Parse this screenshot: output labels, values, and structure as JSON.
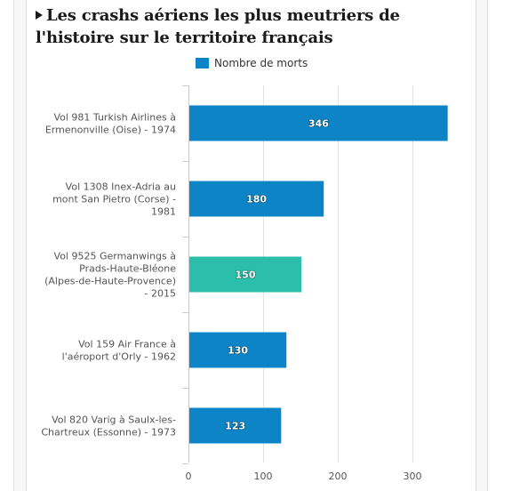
{
  "colors": {
    "bar": "#0d84c6",
    "highlight": "#2bbfab",
    "grid": "#e4e4e4",
    "axis": "#cccccc"
  },
  "chart_data": {
    "type": "bar",
    "orientation": "horizontal",
    "title": "Les crashs aériens les plus meutriers de l'histoire sur le territoire français",
    "categories": [
      [
        "Vol 981 Turkish Airlines à",
        "Ermenonville (Oise) - 1974"
      ],
      [
        "Vol 1308 Inex-Adria au",
        "mont San Pietro (Corse) -",
        "1981"
      ],
      [
        "Vol 9525 Germanwings à",
        "Prads-Haute-Bléone",
        "(Alpes-de-Haute-Provence)",
        "- 2015"
      ],
      [
        "Vol 159 Air France à",
        "l'aéroport d'Orly - 1962"
      ],
      [
        "Vol 820 Varig à Saulx-les-",
        "Chartreux (Essonne) - 1973"
      ]
    ],
    "series": [
      {
        "name": "Nombre de morts",
        "values": [
          346,
          180,
          150,
          130,
          123
        ]
      }
    ],
    "highlight_index": 2,
    "xlim": [
      0,
      350
    ],
    "ticks": [
      0,
      100,
      200,
      300
    ],
    "grid": true,
    "legend": "top"
  }
}
